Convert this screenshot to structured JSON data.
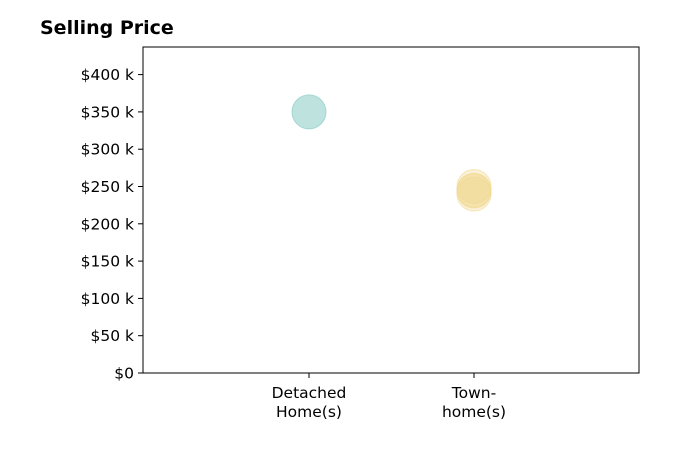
{
  "chart_data": {
    "type": "scatter",
    "title": "Selling Price",
    "xlabel": "",
    "ylabel": "",
    "categories": [
      {
        "lines": [
          "Detached",
          "Home(s)"
        ]
      },
      {
        "lines": [
          "Town-",
          "home(s)"
        ]
      }
    ],
    "ylim": [
      0,
      437000
    ],
    "yticks": [
      {
        "value": 0,
        "label": "$0"
      },
      {
        "value": 50000,
        "label": "$50 k"
      },
      {
        "value": 100000,
        "label": "$100 k"
      },
      {
        "value": 150000,
        "label": "$150 k"
      },
      {
        "value": 200000,
        "label": "$200 k"
      },
      {
        "value": 250000,
        "label": "$250 k"
      },
      {
        "value": 300000,
        "label": "$300 k"
      },
      {
        "value": 350000,
        "label": "$350 k"
      },
      {
        "value": 400000,
        "label": "$400 k"
      }
    ],
    "series": [
      {
        "color": "#7ec8c0",
        "points": [
          {
            "category": 0,
            "y": 350000
          }
        ]
      },
      {
        "color": "#f0d890",
        "points": [
          {
            "category": 1,
            "y": 250000
          },
          {
            "category": 1,
            "y": 245000
          },
          {
            "category": 1,
            "y": 240000
          },
          {
            "category": 1,
            "y": 244000
          }
        ]
      }
    ],
    "grid": false,
    "legend": "none"
  }
}
